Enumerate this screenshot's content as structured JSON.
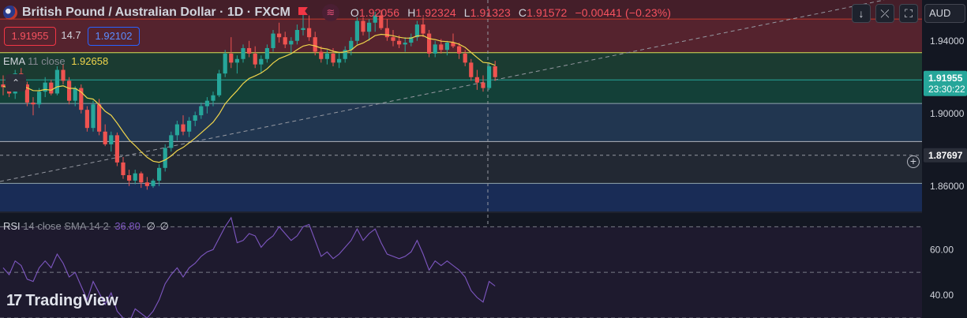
{
  "header": {
    "symbol": "British Pound / Australian Dollar · 1D · FXCM",
    "open_key": "O",
    "open_val": "1.92056",
    "high_key": "H",
    "high_val": "1.92324",
    "low_key": "L",
    "low_val": "1.91323",
    "close_key": "C",
    "close_val": "1.91572",
    "change": "−0.00441 (−0.23%)",
    "wave_icon": "wave-icon"
  },
  "quote": {
    "sell": "1.91955",
    "spread": "14.7",
    "buy": "1.92102"
  },
  "currency_button": "AUD",
  "ema_legend": {
    "name": "EMA",
    "params": "11 close",
    "value": "1.92658"
  },
  "rsi_legend": {
    "name": "RSI",
    "params": "14 close SMA 14 2",
    "value": "36.80",
    "extra1": "∅",
    "extra2": "∅"
  },
  "price_axis": {
    "labels": [
      "1.94000",
      "1.90000",
      "1.86000"
    ],
    "current_price": "1.91955",
    "countdown": "23:30:22",
    "crosshair_price": "1.87697"
  },
  "rsi_axis": {
    "labels": [
      "60.00",
      "40.00"
    ]
  },
  "brand": {
    "name": "TradingView"
  },
  "colors": {
    "bull": "#26a69a",
    "bear": "#ef5350",
    "ema": "#f0d54b",
    "rsi": "#7e57c2",
    "zone_red": "#5d2530",
    "zone_green": "#1e4d3d",
    "zone_blue": "#2a3f5f",
    "zone_navy": "#1b2f5c"
  },
  "chart_data": {
    "type": "candlestick",
    "symbol": "GBPAUD",
    "interval": "1D",
    "y_range": [
      1.846,
      1.9625
    ],
    "ema_period": 11,
    "horizontal_levels": [
      1.952,
      1.9335,
      1.9185,
      1.9055,
      1.8845,
      1.8615
    ],
    "candles": [
      [
        1.916,
        1.921,
        1.91,
        1.9145
      ],
      [
        1.9145,
        1.919,
        1.909,
        1.911
      ],
      [
        1.911,
        1.924,
        1.908,
        1.922
      ],
      [
        1.922,
        1.925,
        1.915,
        1.916
      ],
      [
        1.916,
        1.9175,
        1.904,
        1.906
      ],
      [
        1.906,
        1.909,
        1.899,
        1.905
      ],
      [
        1.905,
        1.914,
        1.903,
        1.912
      ],
      [
        1.912,
        1.92,
        1.909,
        1.917
      ],
      [
        1.917,
        1.9185,
        1.91,
        1.911
      ],
      [
        1.911,
        1.926,
        1.91,
        1.924
      ],
      [
        1.924,
        1.927,
        1.916,
        1.918
      ],
      [
        1.918,
        1.92,
        1.905,
        1.907
      ],
      [
        1.907,
        1.915,
        1.904,
        1.914
      ],
      [
        1.914,
        1.916,
        1.9,
        1.902
      ],
      [
        1.902,
        1.904,
        1.89,
        1.892
      ],
      [
        1.892,
        1.907,
        1.89,
        1.905
      ],
      [
        1.905,
        1.908,
        1.888,
        1.89
      ],
      [
        1.89,
        1.894,
        1.882,
        1.883
      ],
      [
        1.883,
        1.89,
        1.879,
        1.888
      ],
      [
        1.888,
        1.8895,
        1.871,
        1.873
      ],
      [
        1.873,
        1.876,
        1.864,
        1.866
      ],
      [
        1.866,
        1.869,
        1.86,
        1.863
      ],
      [
        1.863,
        1.869,
        1.861,
        1.867
      ],
      [
        1.867,
        1.868,
        1.859,
        1.862
      ],
      [
        1.862,
        1.865,
        1.858,
        1.86
      ],
      [
        1.86,
        1.864,
        1.859,
        1.863
      ],
      [
        1.863,
        1.872,
        1.86,
        1.87
      ],
      [
        1.87,
        1.883,
        1.868,
        1.881
      ],
      [
        1.881,
        1.89,
        1.879,
        1.888
      ],
      [
        1.888,
        1.896,
        1.885,
        1.894
      ],
      [
        1.894,
        1.899,
        1.888,
        1.89
      ],
      [
        1.89,
        1.898,
        1.887,
        1.896
      ],
      [
        1.896,
        1.901,
        1.893,
        1.899
      ],
      [
        1.899,
        1.906,
        1.897,
        1.904
      ],
      [
        1.904,
        1.909,
        1.9,
        1.907
      ],
      [
        1.907,
        1.912,
        1.904,
        1.91
      ],
      [
        1.91,
        1.924,
        1.909,
        1.922
      ],
      [
        1.922,
        1.935,
        1.92,
        1.933
      ],
      [
        1.933,
        1.942,
        1.925,
        1.928
      ],
      [
        1.928,
        1.932,
        1.922,
        1.93
      ],
      [
        1.93,
        1.938,
        1.928,
        1.936
      ],
      [
        1.936,
        1.94,
        1.931,
        1.933
      ],
      [
        1.933,
        1.937,
        1.925,
        1.927
      ],
      [
        1.927,
        1.932,
        1.922,
        1.93
      ],
      [
        1.93,
        1.938,
        1.928,
        1.936
      ],
      [
        1.936,
        1.946,
        1.934,
        1.944
      ],
      [
        1.944,
        1.95,
        1.939,
        1.942
      ],
      [
        1.942,
        1.945,
        1.936,
        1.938
      ],
      [
        1.938,
        1.942,
        1.933,
        1.94
      ],
      [
        1.94,
        1.949,
        1.938,
        1.946
      ],
      [
        1.946,
        1.955,
        1.943,
        1.947
      ],
      [
        1.947,
        1.954,
        1.94,
        1.942
      ],
      [
        1.942,
        1.945,
        1.932,
        1.934
      ],
      [
        1.934,
        1.937,
        1.928,
        1.93
      ],
      [
        1.93,
        1.935,
        1.927,
        1.933
      ],
      [
        1.933,
        1.936,
        1.926,
        1.928
      ],
      [
        1.928,
        1.934,
        1.925,
        1.93
      ],
      [
        1.93,
        1.937,
        1.928,
        1.935
      ],
      [
        1.935,
        1.942,
        1.932,
        1.94
      ],
      [
        1.94,
        1.953,
        1.938,
        1.951
      ],
      [
        1.951,
        1.953,
        1.943,
        1.945
      ],
      [
        1.945,
        1.952,
        1.94,
        1.95
      ],
      [
        1.95,
        1.956,
        1.945,
        1.954
      ],
      [
        1.954,
        1.957,
        1.946,
        1.947
      ],
      [
        1.947,
        1.952,
        1.94,
        1.942
      ],
      [
        1.942,
        1.946,
        1.937,
        1.94
      ],
      [
        1.94,
        1.943,
        1.936,
        1.938
      ],
      [
        1.938,
        1.942,
        1.934,
        1.939
      ],
      [
        1.939,
        1.944,
        1.937,
        1.942
      ],
      [
        1.942,
        1.951,
        1.94,
        1.949
      ],
      [
        1.949,
        1.953,
        1.942,
        1.944
      ],
      [
        1.944,
        1.946,
        1.931,
        1.933
      ],
      [
        1.933,
        1.94,
        1.931,
        1.938
      ],
      [
        1.938,
        1.941,
        1.933,
        1.935
      ],
      [
        1.935,
        1.94,
        1.932,
        1.939
      ],
      [
        1.939,
        1.944,
        1.936,
        1.937
      ],
      [
        1.937,
        1.939,
        1.93,
        1.933
      ],
      [
        1.933,
        1.935,
        1.926,
        1.928
      ],
      [
        1.928,
        1.93,
        1.918,
        1.92
      ],
      [
        1.92,
        1.924,
        1.913,
        1.917
      ],
      [
        1.917,
        1.921,
        1.912,
        1.914
      ],
      [
        1.914,
        1.928,
        1.913,
        1.926
      ],
      [
        1.926,
        1.929,
        1.918,
        1.92
      ]
    ],
    "ema": [
      1.915,
      1.914,
      1.9155,
      1.9157,
      1.9141,
      1.9126,
      1.9125,
      1.9132,
      1.9128,
      1.9147,
      1.9152,
      1.9138,
      1.9138,
      1.9118,
      1.9085,
      1.9079,
      1.9049,
      1.9012,
      1.899,
      1.8947,
      1.8899,
      1.8854,
      1.8823,
      1.8789,
      1.8758,
      1.8737,
      1.8731,
      1.8744,
      1.8766,
      1.8795,
      1.8813,
      1.8838,
      1.8864,
      1.8893,
      1.8922,
      1.8952,
      1.8997,
      1.9053,
      1.9091,
      1.9126,
      1.9165,
      1.9193,
      1.9207,
      1.9223,
      1.9246,
      1.9278,
      1.9302,
      1.9315,
      1.9329,
      1.9351,
      1.9371,
      1.9379,
      1.9372,
      1.936,
      1.9355,
      1.9343,
      1.9336,
      1.9339,
      1.9349,
      1.9376,
      1.9388,
      1.9407,
      1.9429,
      1.9436,
      1.9433,
      1.9428,
      1.942,
      1.9415,
      1.9415,
      1.9427,
      1.9429,
      1.9412,
      1.9407,
      1.9398,
      1.9396,
      1.9392,
      1.9381,
      1.9364,
      1.9336,
      1.9308,
      1.9281,
      1.9278,
      1.9265
    ],
    "rsi": {
      "y_range": [
        30,
        76
      ],
      "levels": [
        70,
        50,
        30
      ],
      "values": [
        52,
        49,
        55,
        53,
        47,
        46,
        52,
        55,
        52,
        58,
        54,
        48,
        50,
        44,
        38,
        46,
        41,
        36,
        41,
        33,
        30,
        28,
        34,
        32,
        30,
        33,
        38,
        45,
        49,
        52,
        48,
        52,
        54,
        57,
        59,
        60,
        65,
        70,
        74,
        63,
        64,
        67,
        66,
        61,
        64,
        66,
        70,
        67,
        64,
        66,
        70,
        71,
        64,
        57,
        59,
        56,
        58,
        61,
        64,
        69,
        64,
        67,
        69,
        63,
        58,
        57,
        56,
        57,
        59,
        64,
        58,
        51,
        55,
        53,
        55,
        53,
        51,
        48,
        42,
        39,
        37,
        46,
        44
      ]
    }
  }
}
